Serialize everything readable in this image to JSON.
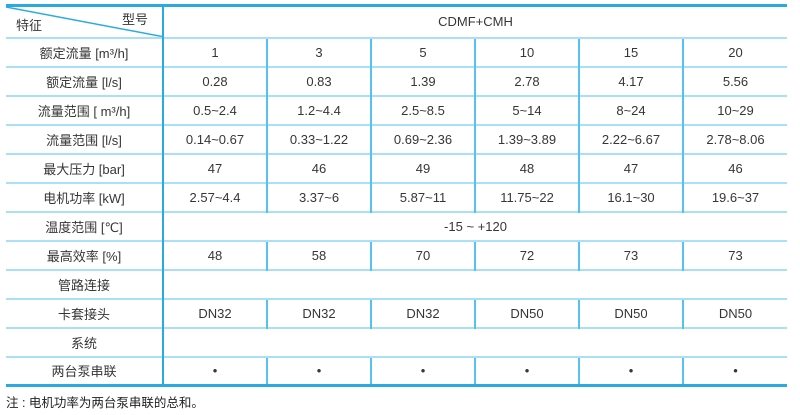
{
  "header": {
    "axis_label_top_right": "型号",
    "axis_label_bottom_left": "特征",
    "model_series": "CDMF+CMH"
  },
  "table": {
    "rows": [
      {
        "label": "额定流量 [m³/h]",
        "values": [
          "1",
          "3",
          "5",
          "10",
          "15",
          "20"
        ]
      },
      {
        "label": "额定流量 [l/s]",
        "values": [
          "0.28",
          "0.83",
          "1.39",
          "2.78",
          "4.17",
          "5.56"
        ]
      },
      {
        "label": "流量范围 [ m³/h]",
        "values": [
          "0.5~2.4",
          "1.2~4.4",
          "2.5~8.5",
          "5~14",
          "8~24",
          "10~29"
        ]
      },
      {
        "label": "流量范围 [l/s]",
        "values": [
          "0.14~0.67",
          "0.33~1.22",
          "0.69~2.36",
          "1.39~3.89",
          "2.22~6.67",
          "2.78~8.06"
        ]
      },
      {
        "label": "最大压力 [bar]",
        "values": [
          "47",
          "46",
          "49",
          "48",
          "47",
          "46"
        ]
      },
      {
        "label": "电机功率 [kW]",
        "values": [
          "2.57~4.4",
          "3.37~6",
          "5.87~11",
          "11.75~22",
          "16.1~30",
          "19.6~37"
        ]
      },
      {
        "label": "温度范围 [℃]",
        "span_value": "-15 ~ +120"
      },
      {
        "label": "最高效率 [%]",
        "values": [
          "48",
          "58",
          "70",
          "72",
          "73",
          "73"
        ]
      },
      {
        "label": "管路连接",
        "span_value": ""
      },
      {
        "label": "卡套接头",
        "values": [
          "DN32",
          "DN32",
          "DN32",
          "DN50",
          "DN50",
          "DN50"
        ]
      },
      {
        "label": "系统",
        "span_value": ""
      },
      {
        "label": "两台泵串联",
        "values": [
          "•",
          "•",
          "•",
          "•",
          "•",
          "•"
        ]
      }
    ],
    "note": "注 : 电机功率为两台泵串联的总和。"
  },
  "colors": {
    "border_strong": "#29ABE2",
    "border_vertical": "#56C2F1",
    "border_light": "#A9DFF7",
    "text": "#363636"
  }
}
